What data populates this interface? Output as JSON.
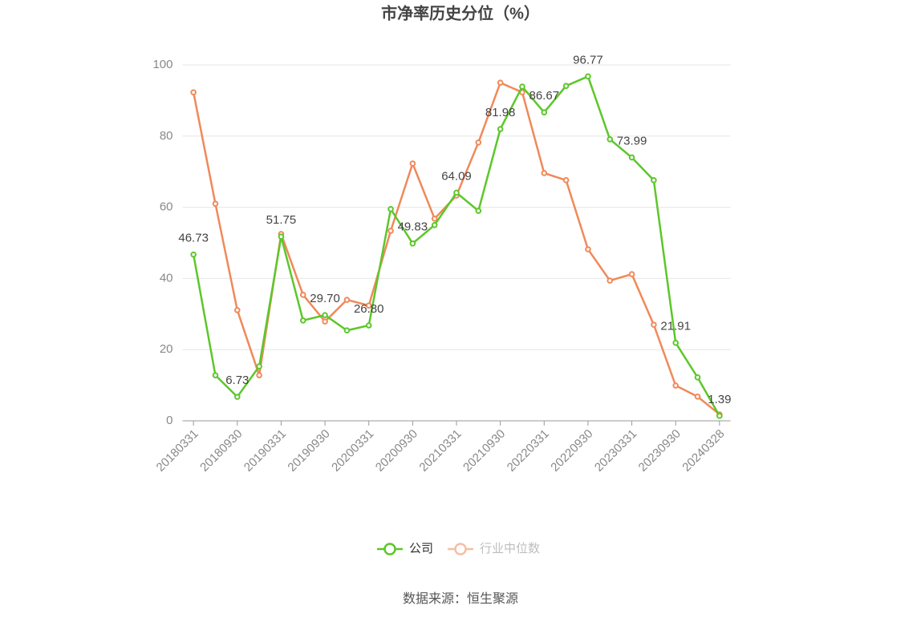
{
  "chart_data": {
    "type": "line",
    "title": "市净率历史分位（%）",
    "categories": [
      "20180331",
      null,
      "20180930",
      null,
      "20190331",
      null,
      "20190930",
      null,
      "20200331",
      null,
      "20200930",
      null,
      "20210331",
      null,
      "20210930",
      null,
      "20220331",
      null,
      "20220930",
      null,
      "20230331",
      null,
      "20230930",
      null,
      "20240328"
    ],
    "series": [
      {
        "name": "公司",
        "color": "#5cc72a",
        "values": [
          46.73,
          12.8,
          6.73,
          15.3,
          51.75,
          28.2,
          29.7,
          25.4,
          26.8,
          59.5,
          49.83,
          55.0,
          64.09,
          59.0,
          81.98,
          93.9,
          86.67,
          94.1,
          96.77,
          79.1,
          73.99,
          67.6,
          21.91,
          12.2,
          1.39
        ],
        "value_labels": [
          "46.73",
          null,
          "6.73",
          null,
          "51.75",
          null,
          "29.70",
          null,
          "26.80",
          null,
          "49.83",
          null,
          "64.09",
          null,
          "81.98",
          null,
          "86.67",
          null,
          "96.77",
          null,
          "73.99",
          null,
          "21.91",
          null,
          "1.39"
        ]
      },
      {
        "name": "行业中位数",
        "color": "#f0895a",
        "values": [
          92.3,
          61.0,
          31.1,
          12.8,
          52.5,
          35.4,
          27.9,
          34.0,
          32.4,
          53.4,
          72.3,
          56.8,
          63.3,
          78.2,
          95.0,
          92.3,
          69.6,
          67.6,
          48.2,
          39.4,
          41.2,
          27.0,
          9.9,
          6.8,
          1.8
        ]
      }
    ],
    "ylim": [
      0,
      100
    ],
    "yticks": [
      0,
      20,
      40,
      60,
      80,
      100
    ],
    "grid": true,
    "source": "数据来源：恒生聚源"
  }
}
